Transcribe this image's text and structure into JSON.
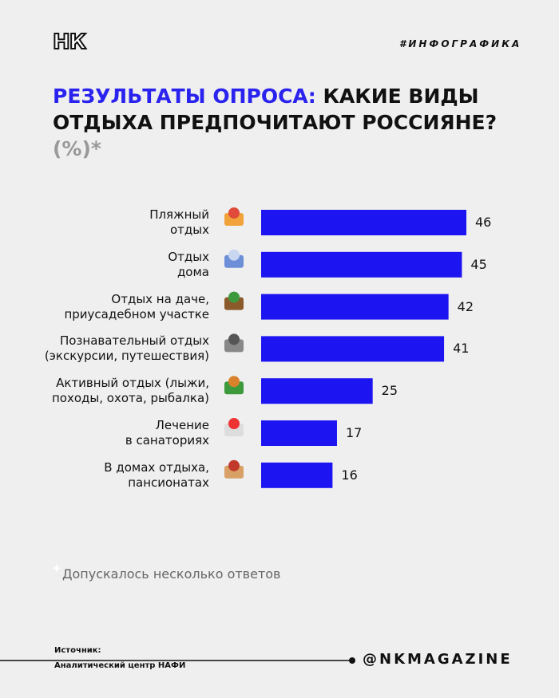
{
  "header": {
    "logo": "НК",
    "tag": "#ИНФОГРАФИКА"
  },
  "chart_data": {
    "type": "bar",
    "orientation": "horizontal",
    "title_highlight": "РЕЗУЛЬТАТЫ ОПРОСА:",
    "title": "КАКИЕ ВИДЫ\nОТДЫХА ПРЕДПОЧИТАЮТ РОССИЯНЕ?",
    "title_unit": "(%)*",
    "categories": [
      "Пляжный\nотдых",
      "Отдых\nдома",
      "Отдых на даче,\nприусадебном участке",
      "Познавательный отдых\n(экскурсии, путешествия)",
      "Активный отдых (лыжи,\nпоходы, охота, рыбалка)",
      "Лечение\nв санаториях",
      "В домах отдыха,\nпансионатах"
    ],
    "values": [
      46,
      45,
      42,
      41,
      25,
      17,
      16
    ],
    "color": "#1d14f2",
    "footnote": "Допускалось несколько ответов"
  },
  "footer": {
    "source_label": "Источник:",
    "source": "Аналитический центр НАФИ",
    "handle": "@NKMAGAZINE"
  }
}
